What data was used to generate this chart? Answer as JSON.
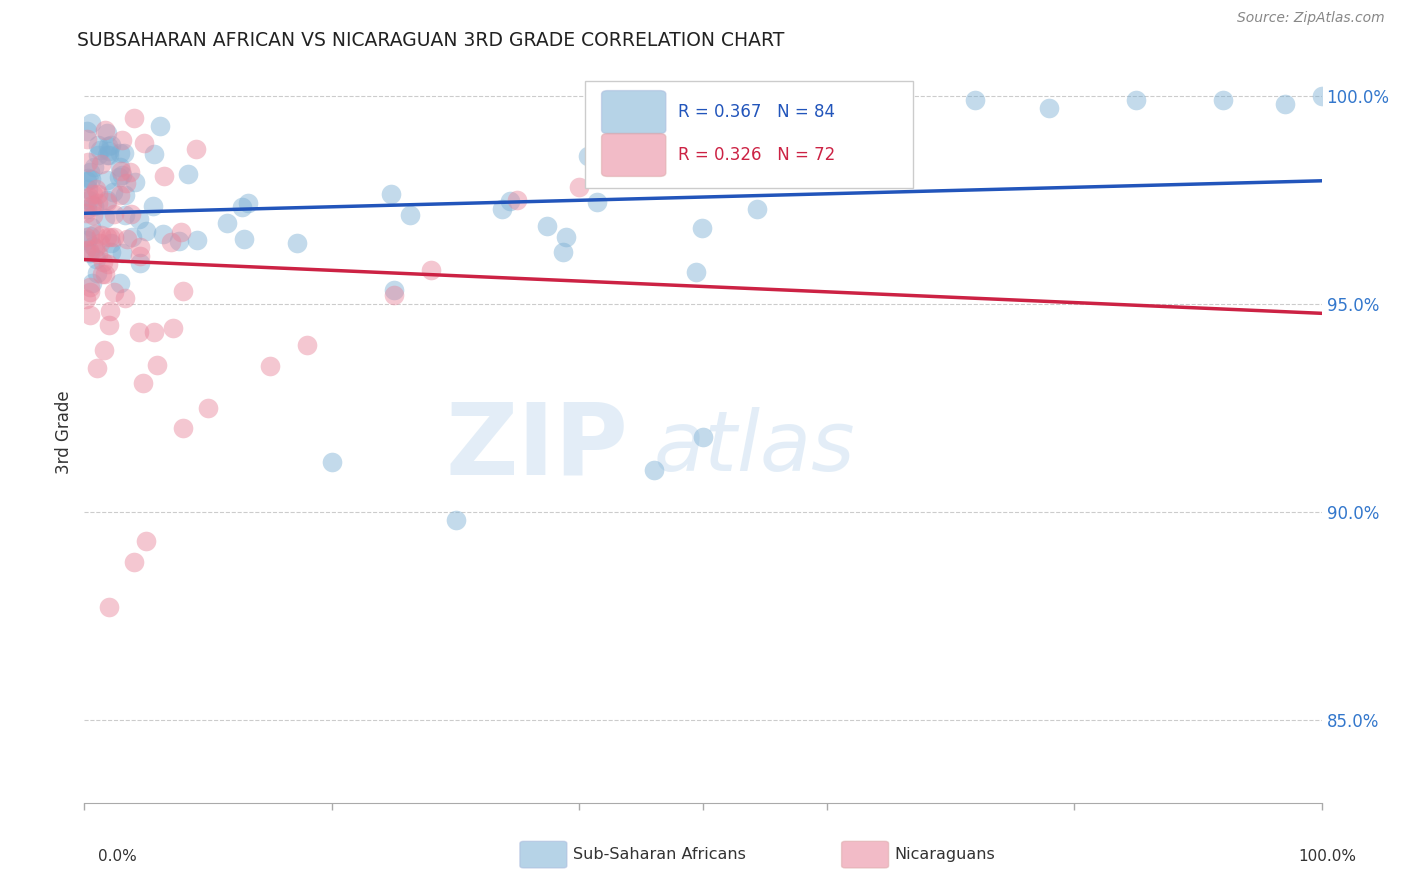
{
  "title": "SUBSAHARAN AFRICAN VS NICARAGUAN 3RD GRADE CORRELATION CHART",
  "source": "Source: ZipAtlas.com",
  "ylabel": "3rd Grade",
  "xlim": [
    0.0,
    1.0
  ],
  "ylim": [
    0.83,
    1.008
  ],
  "blue_color": "#7bafd4",
  "pink_color": "#e8849a",
  "blue_line_color": "#2255bb",
  "pink_line_color": "#cc2244",
  "legend_blue_label": "R = 0.367   N = 84",
  "legend_pink_label": "R = 0.326   N = 72",
  "legend_blue_sublabel": "Sub-Saharan Africans",
  "legend_pink_sublabel": "Nicaraguans",
  "blue_R": 0.367,
  "blue_N": 84,
  "pink_R": 0.326,
  "pink_N": 72,
  "watermark_zip": "ZIP",
  "watermark_atlas": "atlas",
  "background_color": "#ffffff",
  "ytick_vals": [
    0.85,
    0.9,
    0.95,
    1.0
  ],
  "ytick_labels": [
    "85.0%",
    "90.0%",
    "95.0%",
    "100.0%"
  ],
  "xtick_labels_left": "0.0%",
  "xtick_labels_right": "100.0%"
}
